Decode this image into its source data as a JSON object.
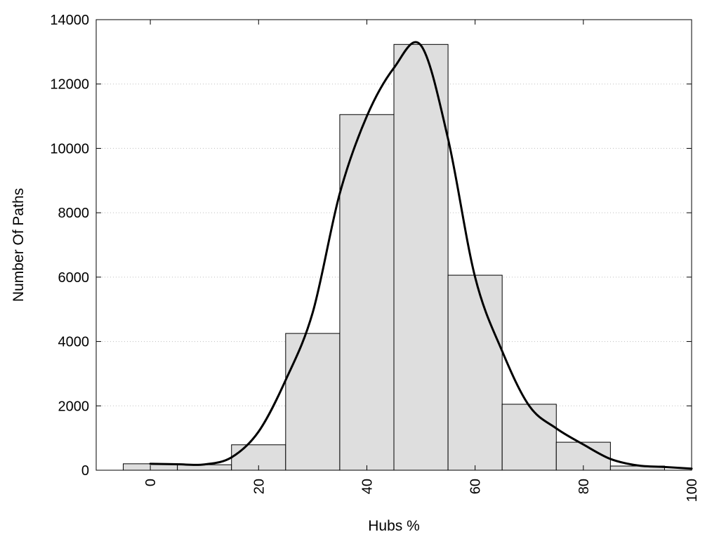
{
  "chart_data": {
    "type": "bar",
    "title": "",
    "xlabel": "Hubs %",
    "ylabel": "Number Of Paths",
    "xlim": [
      -10,
      100
    ],
    "ylim": [
      0,
      14000
    ],
    "x_ticks": [
      0,
      20,
      40,
      60,
      80,
      100
    ],
    "x_tick_labels": [
      "0",
      "20",
      "40",
      "60",
      "80",
      "100"
    ],
    "y_ticks": [
      0,
      2000,
      4000,
      6000,
      8000,
      10000,
      12000,
      14000
    ],
    "y_tick_labels": [
      "0",
      "2000",
      "4000",
      "6000",
      "8000",
      "10000",
      "12000",
      "14000"
    ],
    "grid": "horizontal-dotted",
    "bin_width": 10,
    "bars": {
      "x": [
        0,
        10,
        20,
        30,
        40,
        50,
        60,
        70,
        80,
        90
      ],
      "values": [
        200,
        170,
        790,
        4250,
        11050,
        13230,
        6060,
        2050,
        870,
        130
      ]
    },
    "density_curve": {
      "x": [
        0,
        5,
        10,
        15,
        20,
        25,
        30,
        35,
        40,
        45,
        50,
        55,
        60,
        65,
        70,
        75,
        80,
        85,
        90,
        95,
        100
      ],
      "y": [
        200,
        185,
        180,
        400,
        1200,
        2800,
        4900,
        8600,
        11000,
        12500,
        13200,
        10300,
        6000,
        3700,
        2000,
        1300,
        800,
        350,
        150,
        100,
        50
      ]
    },
    "colors": {
      "bar_fill": "#dedede",
      "bar_stroke": "#000000",
      "curve": "#000000",
      "grid": "#bfbfbf"
    }
  }
}
